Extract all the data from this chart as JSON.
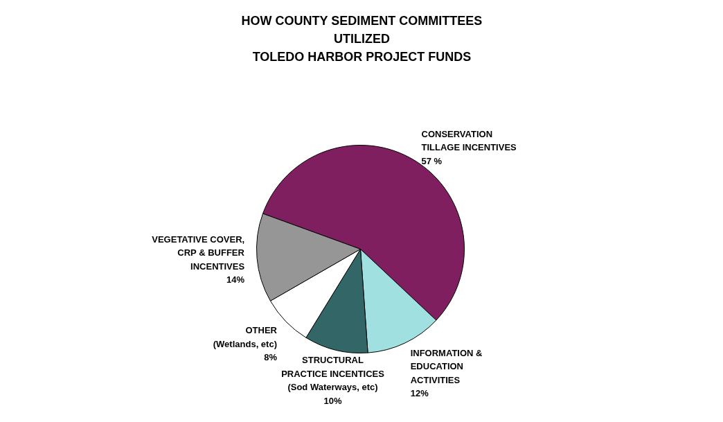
{
  "chart_data": {
    "type": "pie",
    "title": "HOW COUNTY SEDIMENT COMMITTEES\nUTILIZED\nTOLEDO HARBOR PROJECT FUNDS",
    "categories": [
      "CONSERVATION\nTILLAGE INCENTIVES",
      "INFORMATION  &\nEDUCATION\nACTIVITIES",
      "STRUCTURAL\nPRACTICE INCENTICES\n(Sod Waterways, etc)",
      "OTHER\n(Wetlands, etc)",
      "VEGETATIVE COVER,\nCRP & BUFFER\nINCENTIVES"
    ],
    "values": [
      57,
      12,
      10,
      8,
      14
    ],
    "value_labels": [
      "57 %",
      "12%",
      "10%",
      "8%",
      "14%"
    ],
    "colors": [
      "#7f1f5f",
      "#a0e0e0",
      "#336666",
      "#ffffff",
      "#969696"
    ]
  }
}
